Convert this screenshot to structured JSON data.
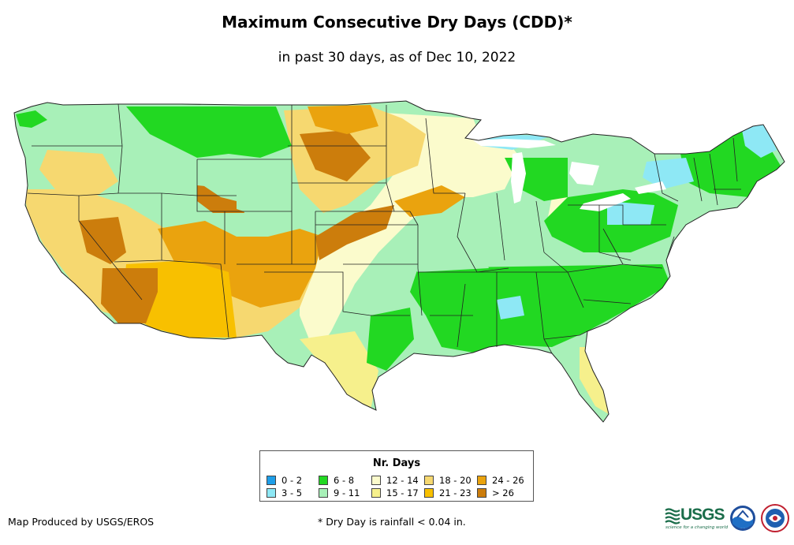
{
  "title": "Maximum Consecutive Dry Days (CDD)*",
  "subtitle": "in past 30 days, as of Dec 10, 2022",
  "legend": {
    "title": "Nr. Days",
    "items": [
      {
        "label": "0 - 2",
        "color": "#1e9ee8"
      },
      {
        "label": "3 - 5",
        "color": "#8ee8f5"
      },
      {
        "label": "6 - 8",
        "color": "#22d822"
      },
      {
        "label": "9 - 11",
        "color": "#a8f0b8"
      },
      {
        "label": "12 - 14",
        "color": "#fbfbcc"
      },
      {
        "label": "15 - 17",
        "color": "#f6f08c"
      },
      {
        "label": "18 - 20",
        "color": "#f6d870"
      },
      {
        "label": "21 - 23",
        "color": "#f8c000"
      },
      {
        "label": "24 - 26",
        "color": "#eaa30e"
      },
      {
        "label": "> 26",
        "color": "#cc7d0c"
      }
    ]
  },
  "footer": {
    "producer": "Map Produced by USGS/EROS",
    "note": "* Dry Day is rainfall < 0.04 in."
  },
  "logos": {
    "usgs": "USGS",
    "usgs_tagline": "science for a changing world"
  }
}
